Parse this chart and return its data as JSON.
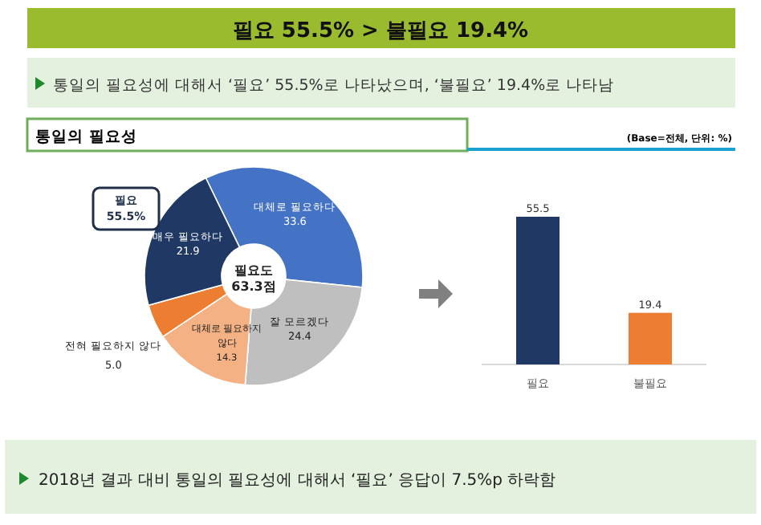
{
  "chart_data": [
    {
      "type": "donut",
      "title": "필요 55.5% > 불필요 19.4%",
      "subtitle": "통일의 필요성에 대해서 ‘필요’ 55.5%로 나타났으며, ‘불필요’ 19.4%로 나타남",
      "annotations": [
        "통일의 필요성",
        "(Base=전체, 단위: %)",
        "필요 55.5%",
        "필요도 63.3점",
        "2018년 결과 대비 통일의 필요성에 대해서 ‘필요’ 응답이 7.5%p 하락함"
      ],
      "categories": [
        "대체로 필요하다",
        "잘 모르겠다",
        "대체로 필요하지 않다",
        "전혀 필요하지 않다",
        "매우 필요하다"
      ],
      "values": [
        33.6,
        24.4,
        14.3,
        5.0,
        21.9
      ],
      "value_labels": [
        "33.6",
        "24.4",
        "14.3",
        "5.0",
        "21.9"
      ],
      "colors": [
        "#4472c4",
        "#bfbfbf",
        "#f4b183",
        "#ed7d31",
        "#203864"
      ],
      "data_labels": true
    },
    {
      "type": "bar",
      "categories": [
        "필요",
        "불필요"
      ],
      "values": [
        55.5,
        19.4
      ],
      "colors": [
        "#1f3864",
        "#ed7d31"
      ],
      "data_labels": true
    }
  ]
}
